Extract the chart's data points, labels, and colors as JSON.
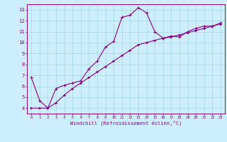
{
  "xlabel": "Windchill (Refroidissement éolien,°C)",
  "background_color": "#cceeff",
  "grid_color": "#aadddd",
  "line_color": "#880088",
  "xlim": [
    -0.5,
    23.5
  ],
  "ylim": [
    3.5,
    13.5
  ],
  "xticks": [
    0,
    1,
    2,
    3,
    4,
    5,
    6,
    7,
    8,
    9,
    10,
    11,
    12,
    13,
    14,
    15,
    16,
    17,
    18,
    19,
    20,
    21,
    22,
    23
  ],
  "yticks": [
    4,
    5,
    6,
    7,
    8,
    9,
    10,
    11,
    12,
    13
  ],
  "curve1_x": [
    0,
    1,
    2,
    3,
    4,
    5,
    6,
    7,
    8,
    9,
    10,
    11,
    12,
    13,
    14,
    15,
    16,
    17,
    18,
    19,
    20,
    21,
    22,
    23
  ],
  "curve1_y": [
    6.8,
    4.7,
    4.0,
    5.8,
    6.1,
    6.3,
    6.5,
    7.6,
    8.3,
    9.6,
    10.1,
    12.3,
    12.5,
    13.2,
    12.7,
    11.0,
    10.4,
    10.6,
    10.5,
    11.0,
    11.3,
    11.5,
    11.5,
    11.8
  ],
  "curve2_x": [
    0,
    1,
    2,
    3,
    4,
    5,
    6,
    7,
    8,
    9,
    10,
    11,
    12,
    13,
    14,
    15,
    16,
    17,
    18,
    19,
    20,
    21,
    22,
    23
  ],
  "curve2_y": [
    4.0,
    4.0,
    4.0,
    4.5,
    5.2,
    5.8,
    6.3,
    6.8,
    7.3,
    7.8,
    8.3,
    8.8,
    9.3,
    9.8,
    10.0,
    10.2,
    10.4,
    10.5,
    10.7,
    10.9,
    11.1,
    11.3,
    11.5,
    11.7
  ]
}
